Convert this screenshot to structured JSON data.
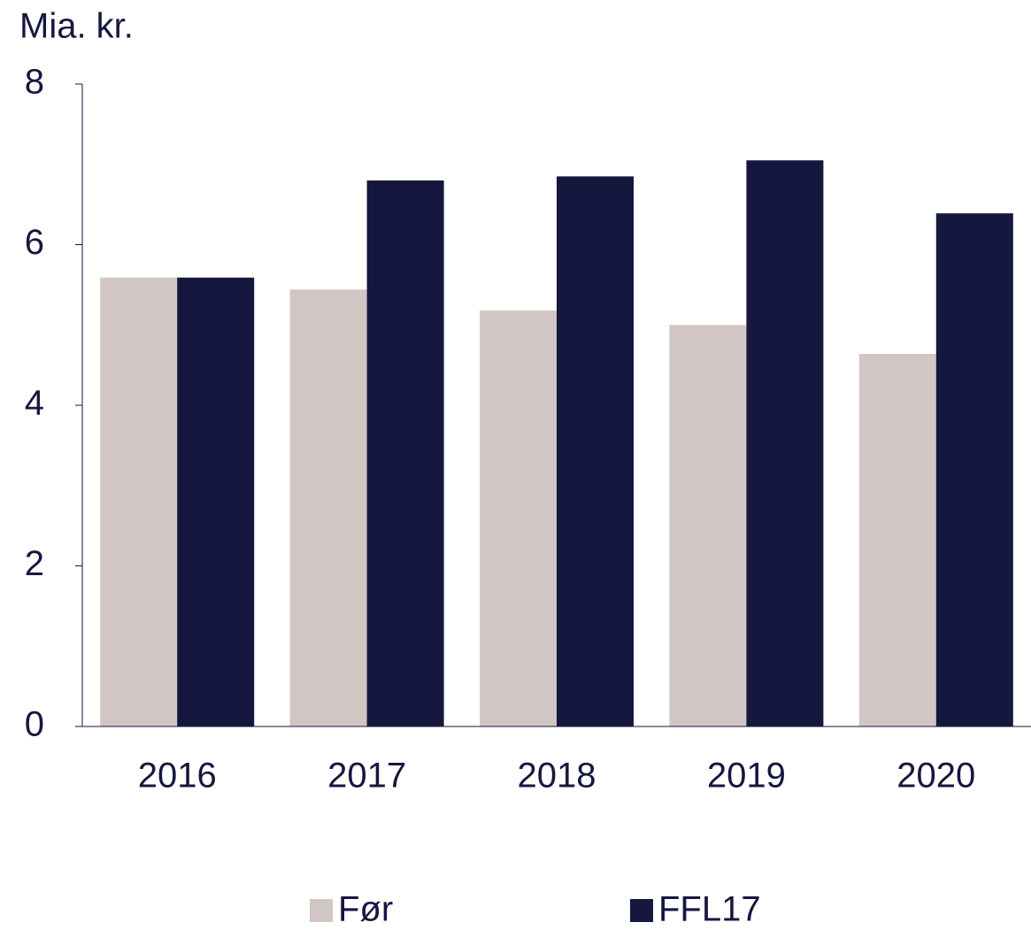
{
  "chart_data": {
    "type": "bar",
    "ylabel": "Mia. kr.",
    "categories": [
      "2016",
      "2017",
      "2018",
      "2019",
      "2020"
    ],
    "series": [
      {
        "name": "Før",
        "color": "#d1c6c4",
        "values": [
          5.59,
          5.44,
          5.18,
          5.0,
          4.64
        ]
      },
      {
        "name": "FFL17",
        "color": "#16173e",
        "values": [
          5.59,
          6.8,
          6.85,
          7.05,
          6.39
        ]
      }
    ],
    "ylim": [
      0,
      8
    ],
    "yticks": [
      0,
      2,
      4,
      6,
      8
    ],
    "grid": false
  }
}
